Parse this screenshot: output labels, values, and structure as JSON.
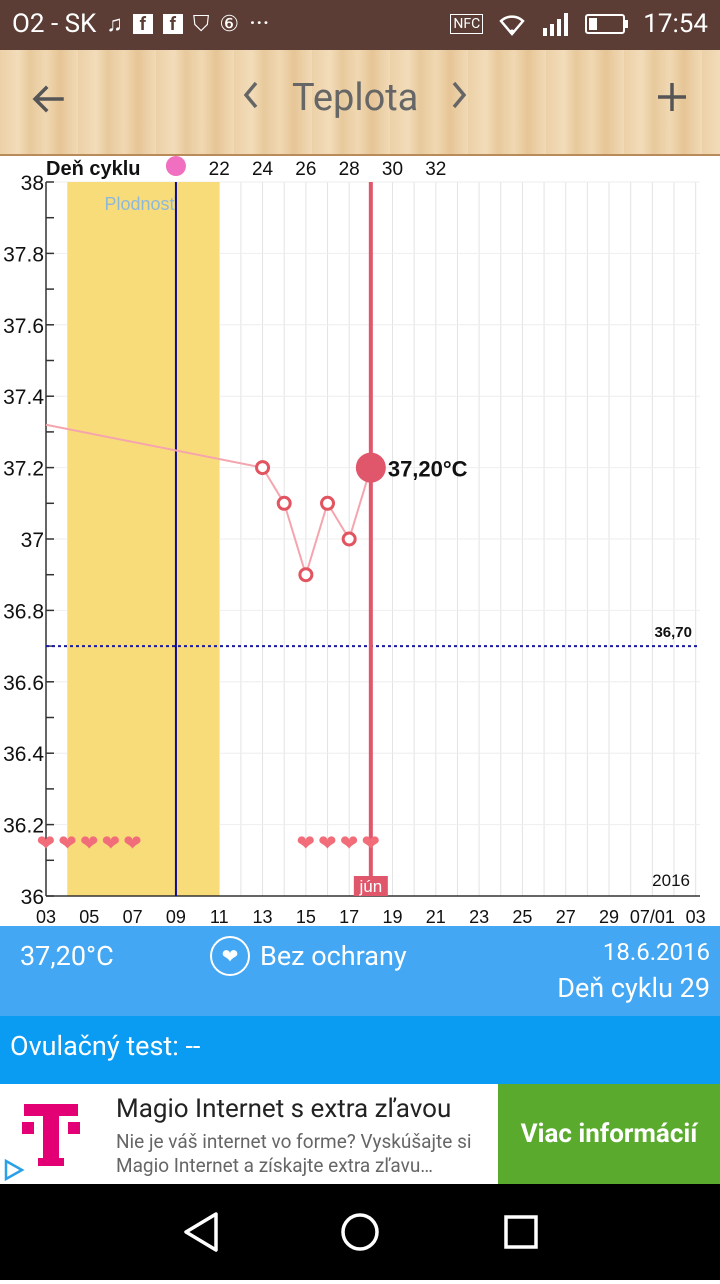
{
  "status_bar": {
    "carrier": "O2 - SK",
    "time": "17:54",
    "nfc": "NFC",
    "more": "···"
  },
  "header": {
    "title": "Teplota",
    "back_icon": "arrow-left-icon",
    "prev_icon": "chevron-left-icon",
    "next_icon": "chevron-right-icon",
    "add_icon": "plus-icon"
  },
  "chart_data": {
    "type": "line",
    "cycle_label": "Deň cyklu",
    "fertility_label": "Plodnosť",
    "cycle_ticks": [
      "22",
      "24",
      "26",
      "28",
      "30",
      "32"
    ],
    "x_ticks": [
      "03",
      "05",
      "07",
      "09",
      "11",
      "13",
      "15",
      "17",
      "19",
      "21",
      "23",
      "25",
      "27",
      "29",
      "07/01",
      "03"
    ],
    "y_ticks": [
      "36",
      "36.2",
      "36.4",
      "36.6",
      "36.8",
      "37",
      "37.2",
      "37.4",
      "37.6",
      "37.8",
      "38"
    ],
    "ylim": [
      36,
      38
    ],
    "series": [
      {
        "x": [
          "2016-06-13",
          "2016-06-14",
          "2016-06-15",
          "2016-06-16",
          "2016-06-17",
          "2016-06-18"
        ],
        "values": [
          37.2,
          37.1,
          36.9,
          37.1,
          37.0,
          37.2
        ]
      }
    ],
    "baseline": "36,70",
    "baseline_value": 36.7,
    "selected_label": "37,20°C",
    "selected_value": 37.2,
    "selected_date": "2016-06-18",
    "month_label": "jún",
    "year_label": "2016",
    "fertile_window": [
      "2016-06-04",
      "2016-06-11"
    ],
    "ovulation_date": "2016-06-09",
    "hearts_dates": [
      "2016-06-03",
      "2016-06-04",
      "2016-06-05",
      "2016-06-06",
      "2016-06-07",
      "2016-06-15",
      "2016-06-16",
      "2016-06-17",
      "2016-06-18"
    ],
    "colors": {
      "fertile": "#f9dc7a",
      "line": "#f4a5ad",
      "point": "#e2545f",
      "selected": "#e0566a",
      "ovulation": "#0a0a9c",
      "baseline": "#1a1a9c"
    }
  },
  "info": {
    "temperature": "37,20°C",
    "protection": "Bez ochrany",
    "date": "18.6.2016",
    "cycle_day": "Deň cyklu 29"
  },
  "ovulation_test": "Ovulačný test: --",
  "ad": {
    "title": "Magio Internet s extra zľavou",
    "body": "Nie je váš internet vo forme? Vyskúšajte si Magio Internet a získajte extra zľavu…",
    "cta": "Viac informácií",
    "brand_color": "#e20074",
    "cta_color": "#5aaa2d"
  }
}
